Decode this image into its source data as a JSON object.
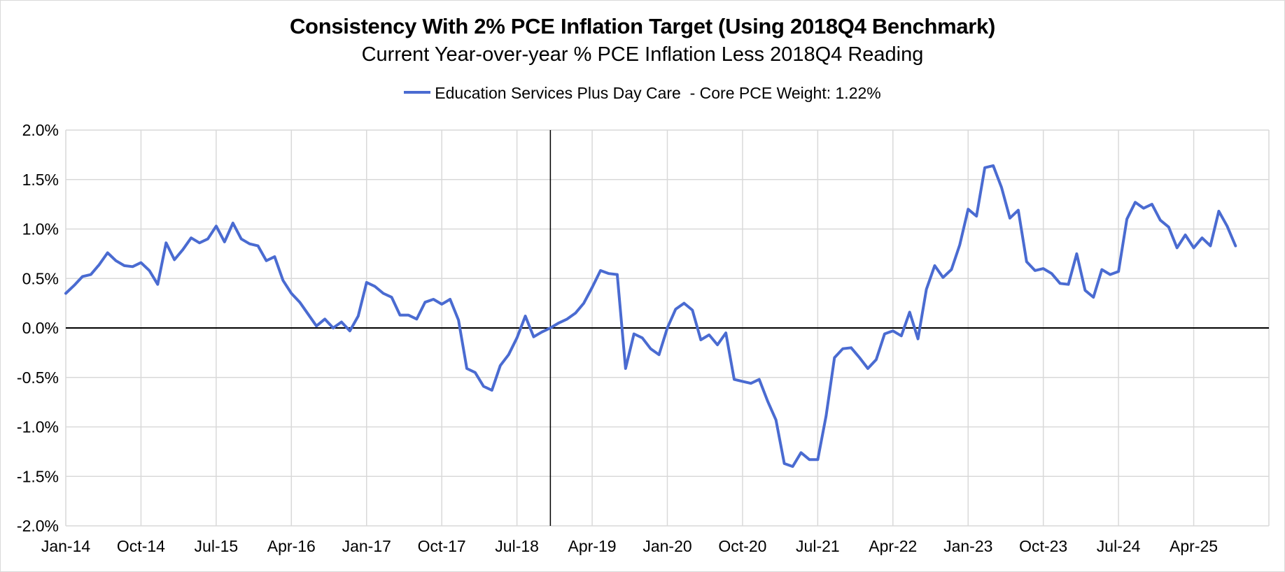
{
  "chart_data": {
    "type": "line",
    "title": "Consistency With 2% PCE Inflation Target (Using 2018Q4 Benchmark)",
    "subtitle": "Current Year-over-year % PCE Inflation Less 2018Q4 Reading",
    "xlabel": "",
    "ylabel": "",
    "ylim": [
      -2.0,
      2.0
    ],
    "y_ticks": [
      2.0,
      1.5,
      1.0,
      0.5,
      0.0,
      -0.5,
      -1.0,
      -1.5,
      -2.0
    ],
    "y_tick_labels": [
      "2.0%",
      "1.5%",
      "1.0%",
      "0.5%",
      "0.0%",
      "-0.5%",
      "-1.0%",
      "-1.5%",
      "-2.0%"
    ],
    "x_tick_labels": [
      "Jan-14",
      "Oct-14",
      "Jul-15",
      "Apr-16",
      "Jan-17",
      "Oct-17",
      "Jul-18",
      "Apr-19",
      "Jan-20",
      "Oct-20",
      "Jul-21",
      "Apr-22",
      "Jan-23",
      "Oct-23",
      "Jul-24",
      "Apr-25"
    ],
    "x_tick_step_months": 9,
    "x_start": "Jan-14",
    "benchmark_label": "2018Q4",
    "benchmark_month_index": 58,
    "grid": true,
    "legend_position": "top-center",
    "series": [
      {
        "name": "Education Services Plus Day Care  - Core PCE Weight: 1.22%",
        "color": "#4a6bd1",
        "values": [
          0.35,
          0.43,
          0.52,
          0.54,
          0.64,
          0.76,
          0.68,
          0.63,
          0.62,
          0.66,
          0.58,
          0.44,
          0.86,
          0.69,
          0.79,
          0.91,
          0.86,
          0.9,
          1.03,
          0.87,
          1.06,
          0.9,
          0.85,
          0.83,
          0.68,
          0.72,
          0.48,
          0.35,
          0.26,
          0.14,
          0.02,
          0.09,
          0.0,
          0.06,
          -0.03,
          0.12,
          0.46,
          0.42,
          0.35,
          0.31,
          0.13,
          0.13,
          0.09,
          0.26,
          0.29,
          0.24,
          0.29,
          0.08,
          -0.41,
          -0.45,
          -0.59,
          -0.63,
          -0.38,
          -0.27,
          -0.1,
          0.12,
          -0.09,
          -0.04,
          0.0,
          0.05,
          0.09,
          0.15,
          0.25,
          0.41,
          0.58,
          0.55,
          0.54,
          -0.41,
          -0.06,
          -0.1,
          -0.21,
          -0.27,
          0.0,
          0.19,
          0.25,
          0.18,
          -0.12,
          -0.07,
          -0.17,
          -0.05,
          -0.52,
          -0.54,
          -0.56,
          -0.52,
          -0.74,
          -0.93,
          -1.37,
          -1.4,
          -1.26,
          -1.33,
          -1.33,
          -0.89,
          -0.3,
          -0.21,
          -0.2,
          -0.3,
          -0.41,
          -0.32,
          -0.06,
          -0.03,
          -0.08,
          0.16,
          -0.11,
          0.39,
          0.63,
          0.51,
          0.59,
          0.84,
          1.2,
          1.13,
          1.62,
          1.64,
          1.42,
          1.11,
          1.19,
          0.67,
          0.58,
          0.6,
          0.55,
          0.45,
          0.44,
          0.75,
          0.38,
          0.31,
          0.59,
          0.54,
          0.57,
          1.1,
          1.27,
          1.21,
          1.25,
          1.09,
          1.02,
          0.81,
          0.94,
          0.81,
          0.91,
          0.83,
          1.18,
          1.03,
          0.83
        ]
      }
    ]
  }
}
